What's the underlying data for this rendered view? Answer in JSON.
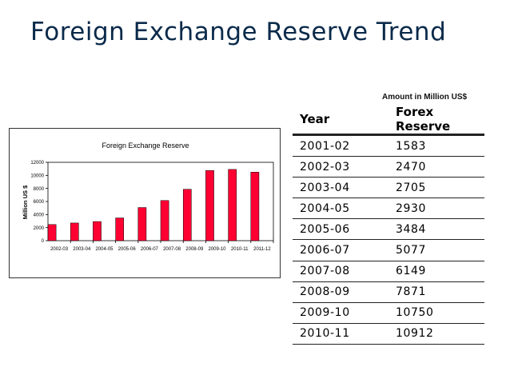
{
  "page": {
    "title": "Foreign Exchange Reserve Trend",
    "amount_note": "Amount in Million US$"
  },
  "table": {
    "headers": [
      "Year",
      "Forex Reserve"
    ],
    "rows": [
      [
        "2001-02",
        "1583"
      ],
      [
        "2002-03",
        "2470"
      ],
      [
        "2003-04",
        "2705"
      ],
      [
        "2004-05",
        "2930"
      ],
      [
        "2005-06",
        "3484"
      ],
      [
        "2006-07",
        "5077"
      ],
      [
        "2007-08",
        "6149"
      ],
      [
        "2008-09",
        "7871"
      ],
      [
        "2009-10",
        "10750"
      ],
      [
        "2010-11",
        "10912"
      ]
    ]
  },
  "chart_data": {
    "type": "bar",
    "title": "Foreign Exchange Reserve",
    "xlabel": "",
    "ylabel": "Million US $",
    "categories": [
      "2002-03",
      "2003-04",
      "2004-05",
      "2005-06",
      "2006-07",
      "2007-08",
      "2008-09",
      "2009-10",
      "2010-11",
      "2011-12"
    ],
    "values": [
      2470,
      2705,
      2930,
      3484,
      5077,
      6149,
      7871,
      10750,
      10912,
      10500
    ],
    "ylim": [
      0,
      12000
    ],
    "yticks": [
      0,
      2000,
      4000,
      6000,
      8000,
      10000,
      12000
    ],
    "grid": false,
    "legend": "none",
    "bar_color": "#ff0033"
  }
}
